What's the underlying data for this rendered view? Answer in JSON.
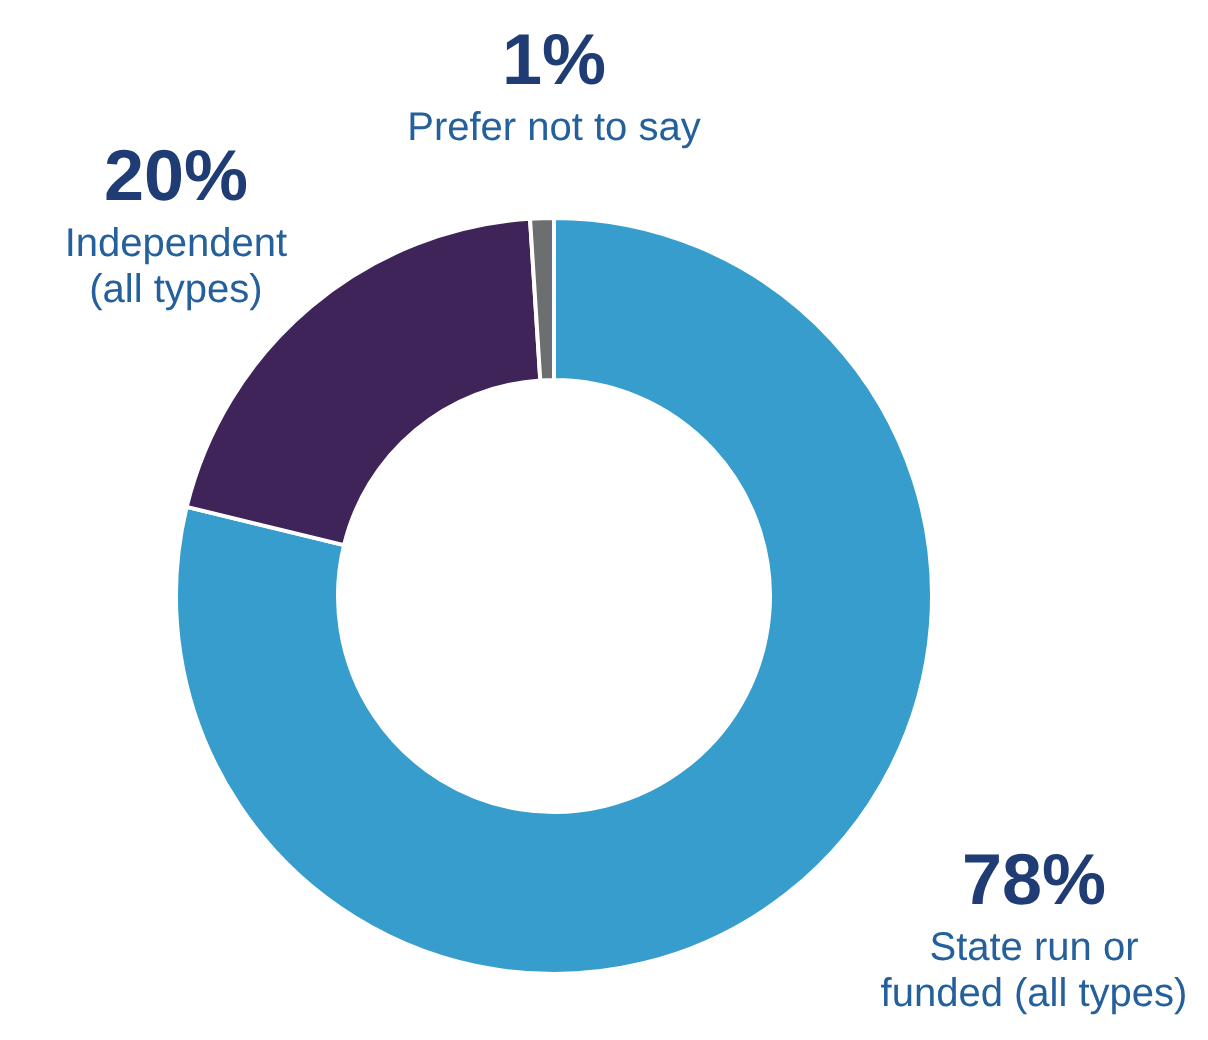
{
  "chart_data": {
    "type": "donut",
    "categories": [
      "State run or funded (all types)",
      "Independent (all types)",
      "Prefer not to say"
    ],
    "values": [
      78,
      20,
      1
    ],
    "colors": [
      "#369dcc",
      "#3e2459",
      "#6d6e70"
    ],
    "value_labels": [
      "78%",
      "20%",
      "1%"
    ]
  }
}
